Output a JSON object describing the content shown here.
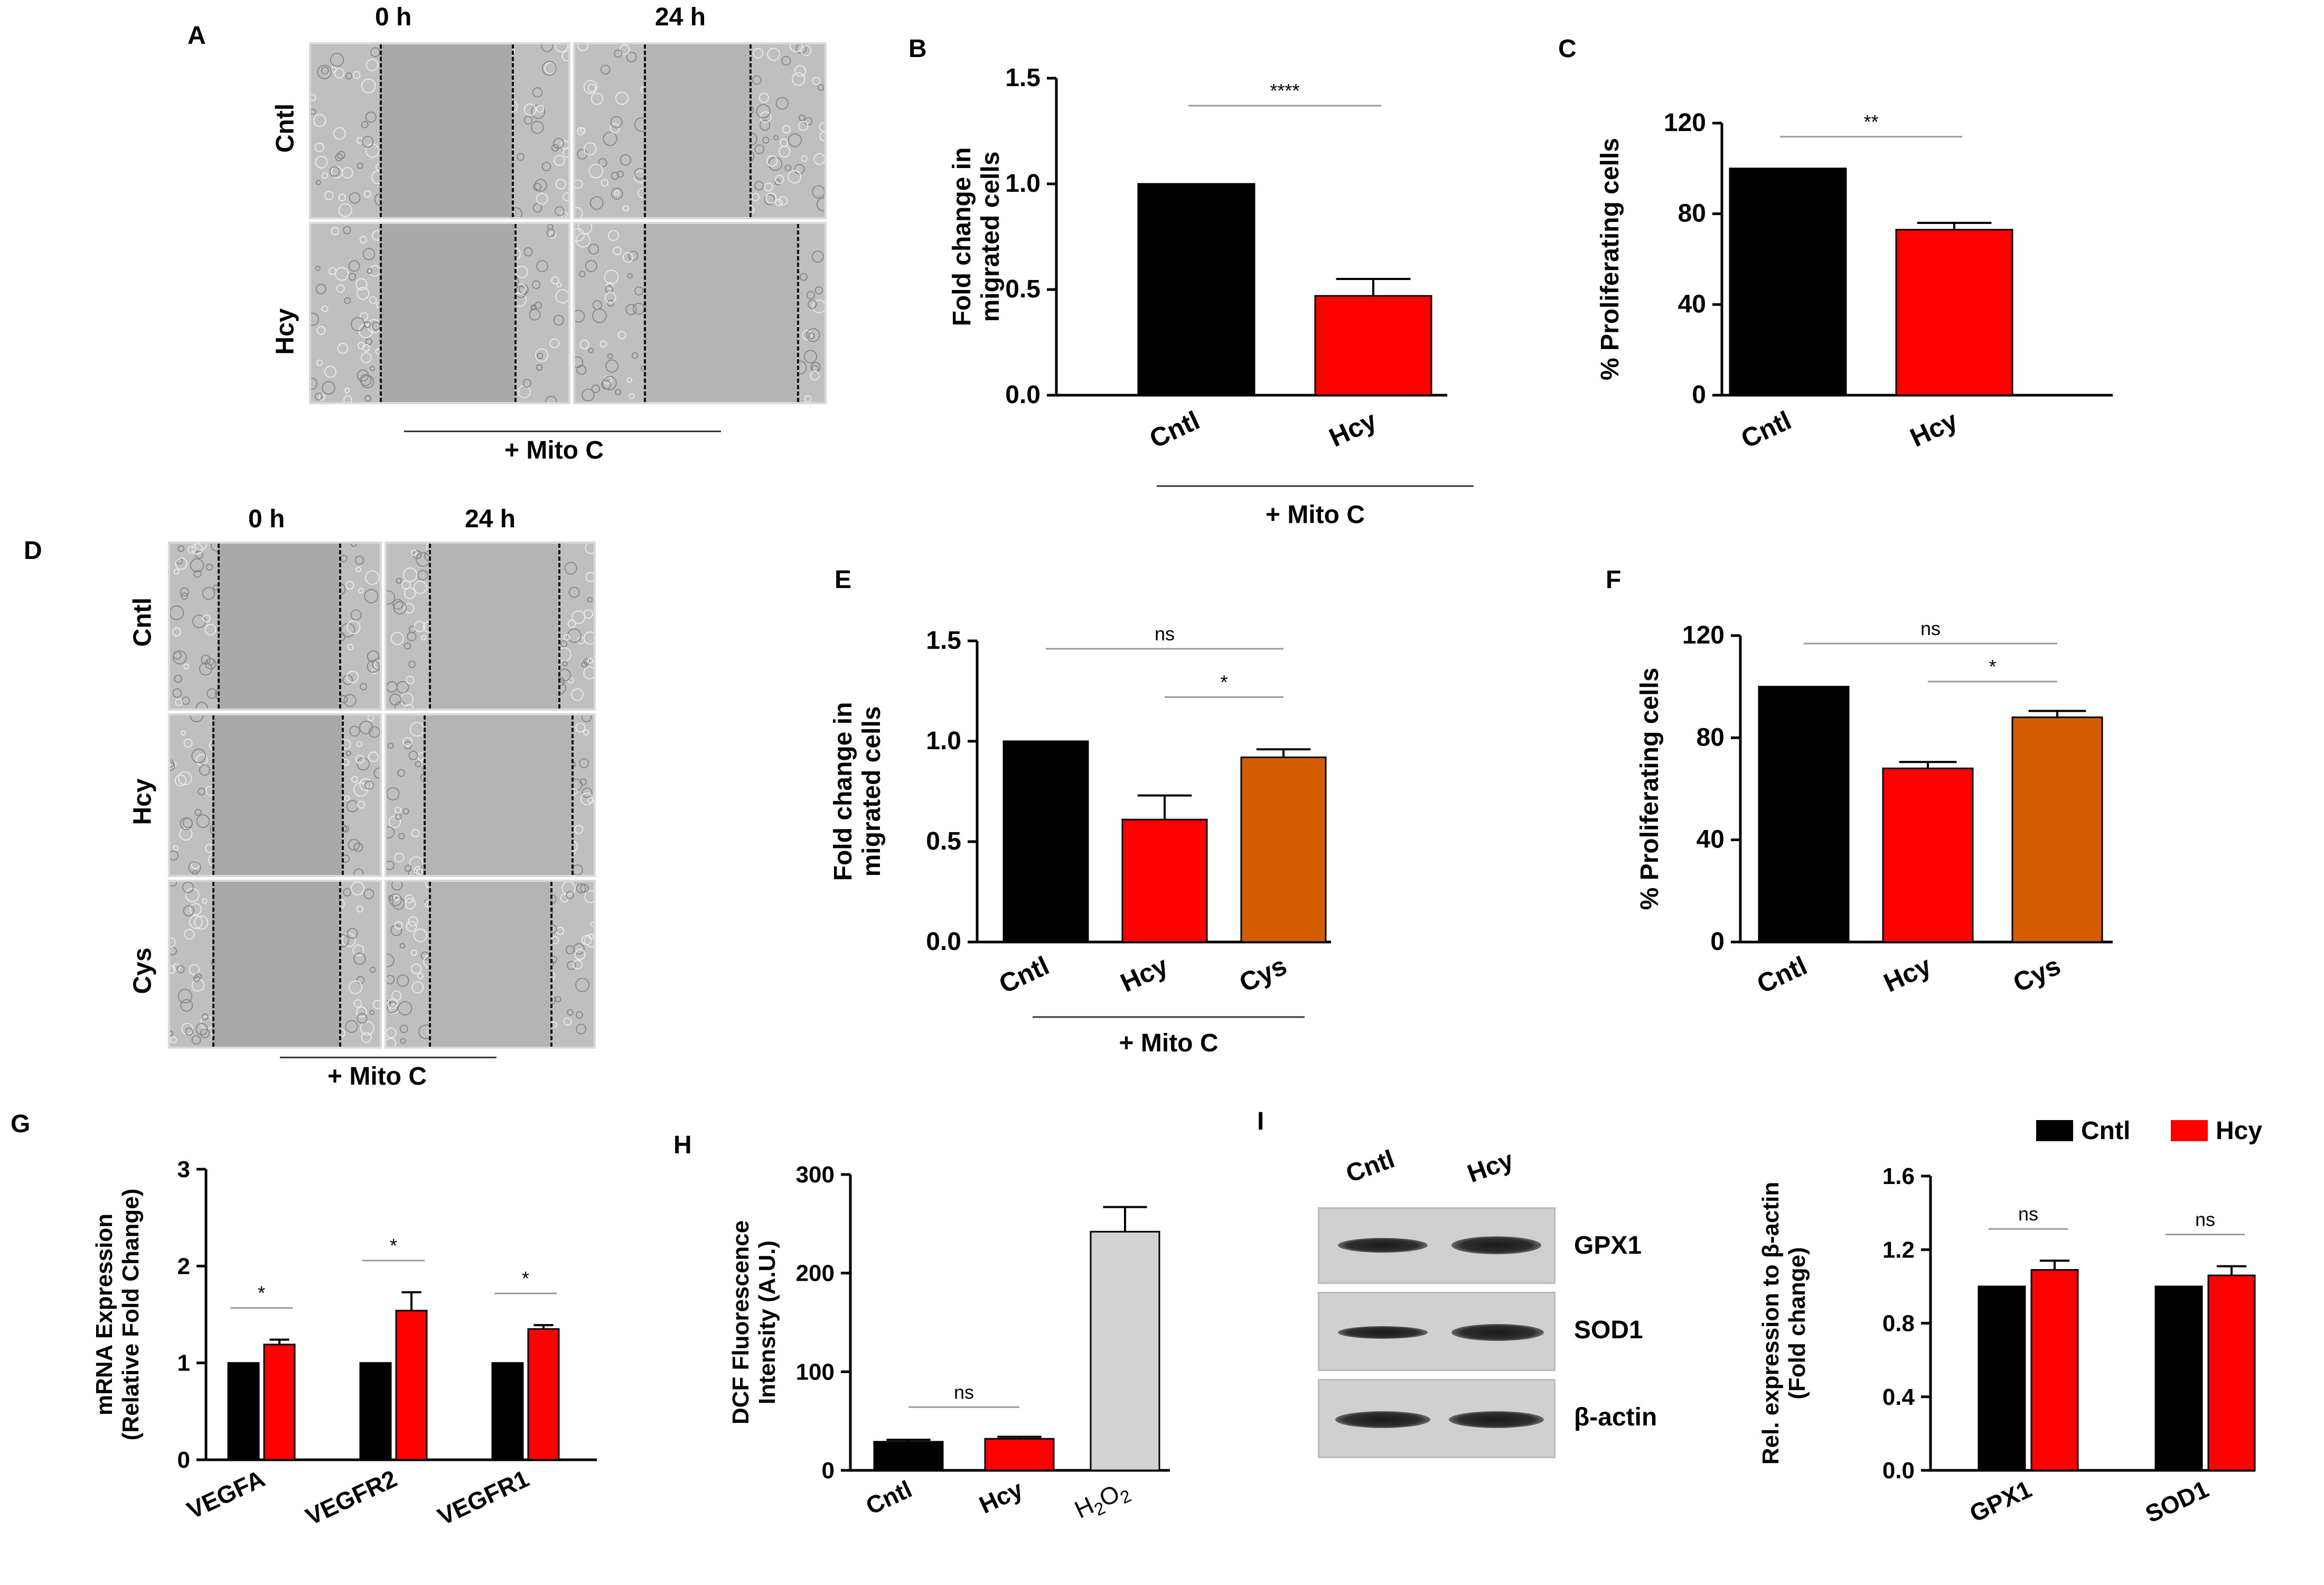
{
  "panels": {
    "A": {
      "letter": "A",
      "time_0": "0 h",
      "time_24": "24 h",
      "row_labels": [
        "Cntl",
        "Hcy"
      ],
      "treatment": "+ Mito C"
    },
    "D": {
      "letter": "D",
      "time_0": "0 h",
      "time_24": "24 h",
      "row_labels": [
        "Cntl",
        "Hcy",
        "Cys"
      ],
      "treatment": "+ Mito C"
    },
    "I": {
      "letter": "I",
      "lane_labels": [
        "Cntl",
        "Hcy"
      ],
      "blot_labels": [
        "GPX1",
        "SOD1",
        "β-actin"
      ]
    }
  },
  "colors": {
    "cntl": "#000000",
    "hcy": "#ff0000",
    "cys": "#d45d00",
    "h2o2": "#d3d3d3"
  },
  "chart_data": [
    {
      "id": "B",
      "letter": "B",
      "type": "bar",
      "categories": [
        "Cntl",
        "Hcy"
      ],
      "values": [
        1.0,
        0.47
      ],
      "errors": [
        0,
        0.08
      ],
      "colors": [
        "#000000",
        "#ff0000"
      ],
      "ylabel": [
        "Fold change in",
        "migrated cells"
      ],
      "ylim": [
        0,
        1.5
      ],
      "yticks": [
        0.0,
        0.5,
        1.0,
        1.5
      ],
      "tick_labels": [
        "0.0",
        "0.5",
        "1.0",
        "1.5"
      ],
      "group_label": "+ Mito C",
      "significance": [
        {
          "from": 0,
          "to": 1,
          "label": "****"
        }
      ]
    },
    {
      "id": "C",
      "letter": "C",
      "type": "bar",
      "categories": [
        "Cntl",
        "Hcy"
      ],
      "values": [
        100,
        73
      ],
      "errors": [
        0,
        3
      ],
      "colors": [
        "#000000",
        "#ff0000"
      ],
      "ylabel": [
        "% Proliferating cells"
      ],
      "ylim": [
        0,
        120
      ],
      "yticks": [
        0,
        40,
        80,
        120
      ],
      "tick_labels": [
        "0",
        "40",
        "80",
        "120"
      ],
      "significance": [
        {
          "from": 0,
          "to": 1,
          "label": "**"
        }
      ]
    },
    {
      "id": "E",
      "letter": "E",
      "type": "bar",
      "categories": [
        "Cntl",
        "Hcy",
        "Cys"
      ],
      "values": [
        1.0,
        0.61,
        0.92
      ],
      "errors": [
        0,
        0.12,
        0.04
      ],
      "colors": [
        "#000000",
        "#ff0000",
        "#d45d00"
      ],
      "ylabel": [
        "Fold change in",
        "migrated cells"
      ],
      "ylim": [
        0,
        1.5
      ],
      "yticks": [
        0.0,
        0.5,
        1.0,
        1.5
      ],
      "tick_labels": [
        "0.0",
        "0.5",
        "1.0",
        "1.5"
      ],
      "group_label": "+ Mito C",
      "significance": [
        {
          "from": 0,
          "to": 2,
          "label": "ns"
        },
        {
          "from": 1,
          "to": 2,
          "label": "*"
        }
      ]
    },
    {
      "id": "F",
      "letter": "F",
      "type": "bar",
      "categories": [
        "Cntl",
        "Hcy",
        "Cys"
      ],
      "values": [
        100,
        68,
        88
      ],
      "errors": [
        0,
        2.5,
        2.5
      ],
      "colors": [
        "#000000",
        "#ff0000",
        "#d45d00"
      ],
      "ylabel": [
        "% Proliferating cells"
      ],
      "ylim": [
        0,
        120
      ],
      "yticks": [
        0,
        40,
        80,
        120
      ],
      "tick_labels": [
        "0",
        "40",
        "80",
        "120"
      ],
      "significance": [
        {
          "from": 0,
          "to": 2,
          "label": "ns"
        },
        {
          "from": 1,
          "to": 2,
          "label": "*"
        }
      ]
    },
    {
      "id": "G",
      "letter": "G",
      "type": "bar",
      "categories": [
        "VEGFA",
        "VEGFR2",
        "VEGFR1"
      ],
      "series": [
        {
          "name": "Cntl",
          "values": [
            1.0,
            1.0,
            1.0
          ],
          "errors": [
            0,
            0,
            0
          ],
          "color": "#000000"
        },
        {
          "name": "Hcy",
          "values": [
            1.19,
            1.54,
            1.35
          ],
          "errors": [
            0.05,
            0.19,
            0.04
          ],
          "color": "#ff0000"
        }
      ],
      "ylabel": [
        "mRNA Expression",
        "(Relative Fold Change)"
      ],
      "ylim": [
        0,
        3
      ],
      "yticks": [
        0,
        1,
        2,
        3
      ],
      "tick_labels": [
        "0",
        "1",
        "2",
        "3"
      ],
      "significance": [
        {
          "group": 0,
          "label": "*"
        },
        {
          "group": 1,
          "label": "*"
        },
        {
          "group": 2,
          "label": "*"
        }
      ]
    },
    {
      "id": "H",
      "letter": "H",
      "type": "bar",
      "categories": [
        "Cntl",
        "Hcy",
        "H2O2"
      ],
      "values": [
        29,
        32,
        242
      ],
      "errors": [
        2,
        2,
        25
      ],
      "colors": [
        "#000000",
        "#ff0000",
        "#d3d3d3"
      ],
      "ylabel": [
        "DCF Fluorescence",
        "Intensity (A.U.)"
      ],
      "ylim": [
        0,
        300
      ],
      "yticks": [
        0,
        100,
        200,
        300
      ],
      "tick_labels": [
        "0",
        "100",
        "200",
        "300"
      ],
      "significance": [
        {
          "from": 0,
          "to": 1,
          "label": "ns"
        }
      ]
    },
    {
      "id": "I",
      "type": "bar",
      "categories": [
        "GPX1",
        "SOD1"
      ],
      "series": [
        {
          "name": "Cntl",
          "values": [
            1.0,
            1.0
          ],
          "errors": [
            0,
            0
          ],
          "color": "#000000"
        },
        {
          "name": "Hcy",
          "values": [
            1.09,
            1.06
          ],
          "errors": [
            0.05,
            0.05
          ],
          "color": "#ff0000"
        }
      ],
      "ylabel": [
        "Rel. expression to β-actin",
        "(Fold change)"
      ],
      "ylim": [
        0,
        1.6
      ],
      "yticks": [
        0.0,
        0.4,
        0.8,
        1.2,
        1.6
      ],
      "tick_labels": [
        "0.0",
        "0.4",
        "0.8",
        "1.2",
        "1.6"
      ],
      "legend": [
        "Cntl",
        "Hcy"
      ],
      "legend_position": "top-right",
      "significance": [
        {
          "group": 0,
          "label": "ns"
        },
        {
          "group": 1,
          "label": "ns"
        }
      ]
    }
  ]
}
